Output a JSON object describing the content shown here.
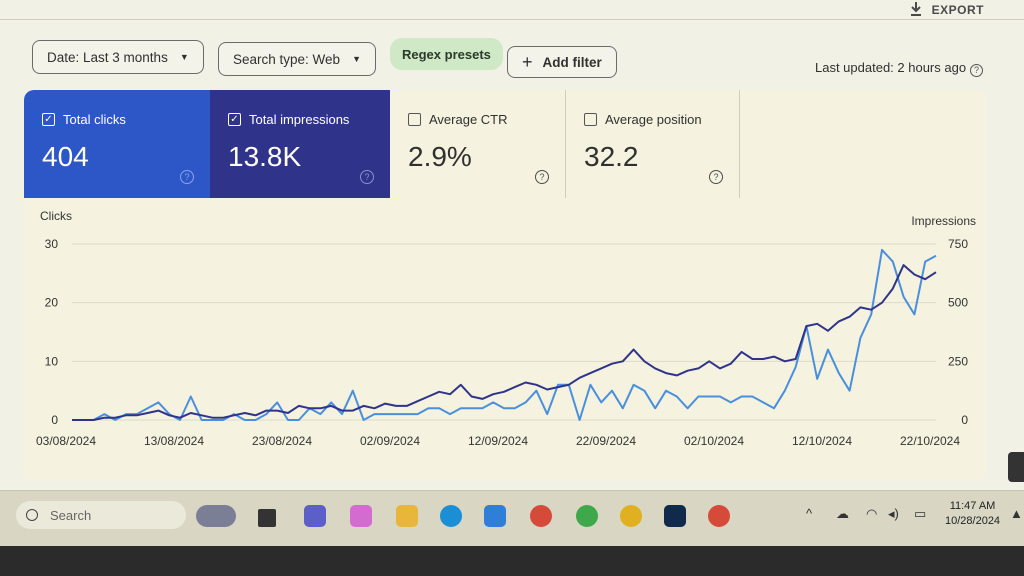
{
  "header": {
    "export_label": "EXPORT"
  },
  "filters": {
    "date_label": "Date: Last 3 months",
    "search_type_label": "Search type: Web",
    "regex_label": "Regex presets",
    "add_filter_label": "Add filter",
    "last_updated": "Last updated: 2 hours ago"
  },
  "metrics": [
    {
      "label": "Total clicks",
      "value": "404",
      "checked": true
    },
    {
      "label": "Total impressions",
      "value": "13.8K",
      "checked": true
    },
    {
      "label": "Average CTR",
      "value": "2.9%",
      "checked": false
    },
    {
      "label": "Average position",
      "value": "32.2",
      "checked": false
    }
  ],
  "colors": {
    "clicks": "#4a8fde",
    "impressions": "#2f348a",
    "clicks_card": "#2d57c7"
  },
  "chart_data": {
    "type": "line",
    "ylabel_left": "Clicks",
    "ylabel_right": "Impressions",
    "ylim_left": [
      0,
      30
    ],
    "ylim_right": [
      0,
      750
    ],
    "yticks_left": [
      "0",
      "10",
      "20",
      "30"
    ],
    "yticks_right": [
      "0",
      "250",
      "500",
      "750"
    ],
    "xtick_labels": [
      "03/08/2024",
      "13/08/2024",
      "23/08/2024",
      "02/09/2024",
      "12/09/2024",
      "22/09/2024",
      "02/10/2024",
      "12/10/2024",
      "22/10/2024"
    ],
    "grid": true,
    "series": [
      {
        "axis": "left",
        "values": [
          0,
          0,
          0,
          1,
          0,
          1,
          1,
          2,
          3,
          1,
          0,
          4,
          0,
          0,
          0,
          1,
          0,
          0,
          1,
          3,
          0,
          0,
          2,
          1,
          3,
          1,
          5,
          0,
          1,
          1,
          1,
          1,
          1,
          2,
          2,
          1,
          2,
          2,
          2,
          3,
          2,
          2,
          3,
          5,
          1,
          6,
          6,
          0,
          6,
          3,
          5,
          2,
          6,
          5,
          2,
          5,
          4,
          2,
          4,
          4,
          4,
          3,
          4,
          4,
          3,
          2,
          5,
          9,
          16,
          7,
          12,
          8,
          5,
          14,
          18,
          29,
          27,
          21,
          18,
          27,
          28
        ]
      },
      {
        "axis": "right",
        "values": [
          0,
          0,
          0,
          10,
          10,
          20,
          20,
          30,
          40,
          20,
          10,
          30,
          20,
          10,
          10,
          20,
          30,
          20,
          40,
          40,
          30,
          60,
          50,
          50,
          60,
          40,
          40,
          60,
          50,
          70,
          60,
          60,
          80,
          100,
          120,
          110,
          150,
          100,
          90,
          110,
          120,
          140,
          160,
          150,
          130,
          140,
          150,
          180,
          200,
          220,
          240,
          250,
          300,
          250,
          220,
          200,
          190,
          210,
          220,
          250,
          220,
          240,
          290,
          260,
          260,
          270,
          250,
          260,
          400,
          410,
          380,
          420,
          440,
          480,
          470,
          500,
          560,
          660,
          620,
          600,
          630
        ]
      }
    ]
  },
  "taskbar": {
    "search_placeholder": "Search",
    "time": "11:47 AM",
    "date": "10/28/2024"
  }
}
